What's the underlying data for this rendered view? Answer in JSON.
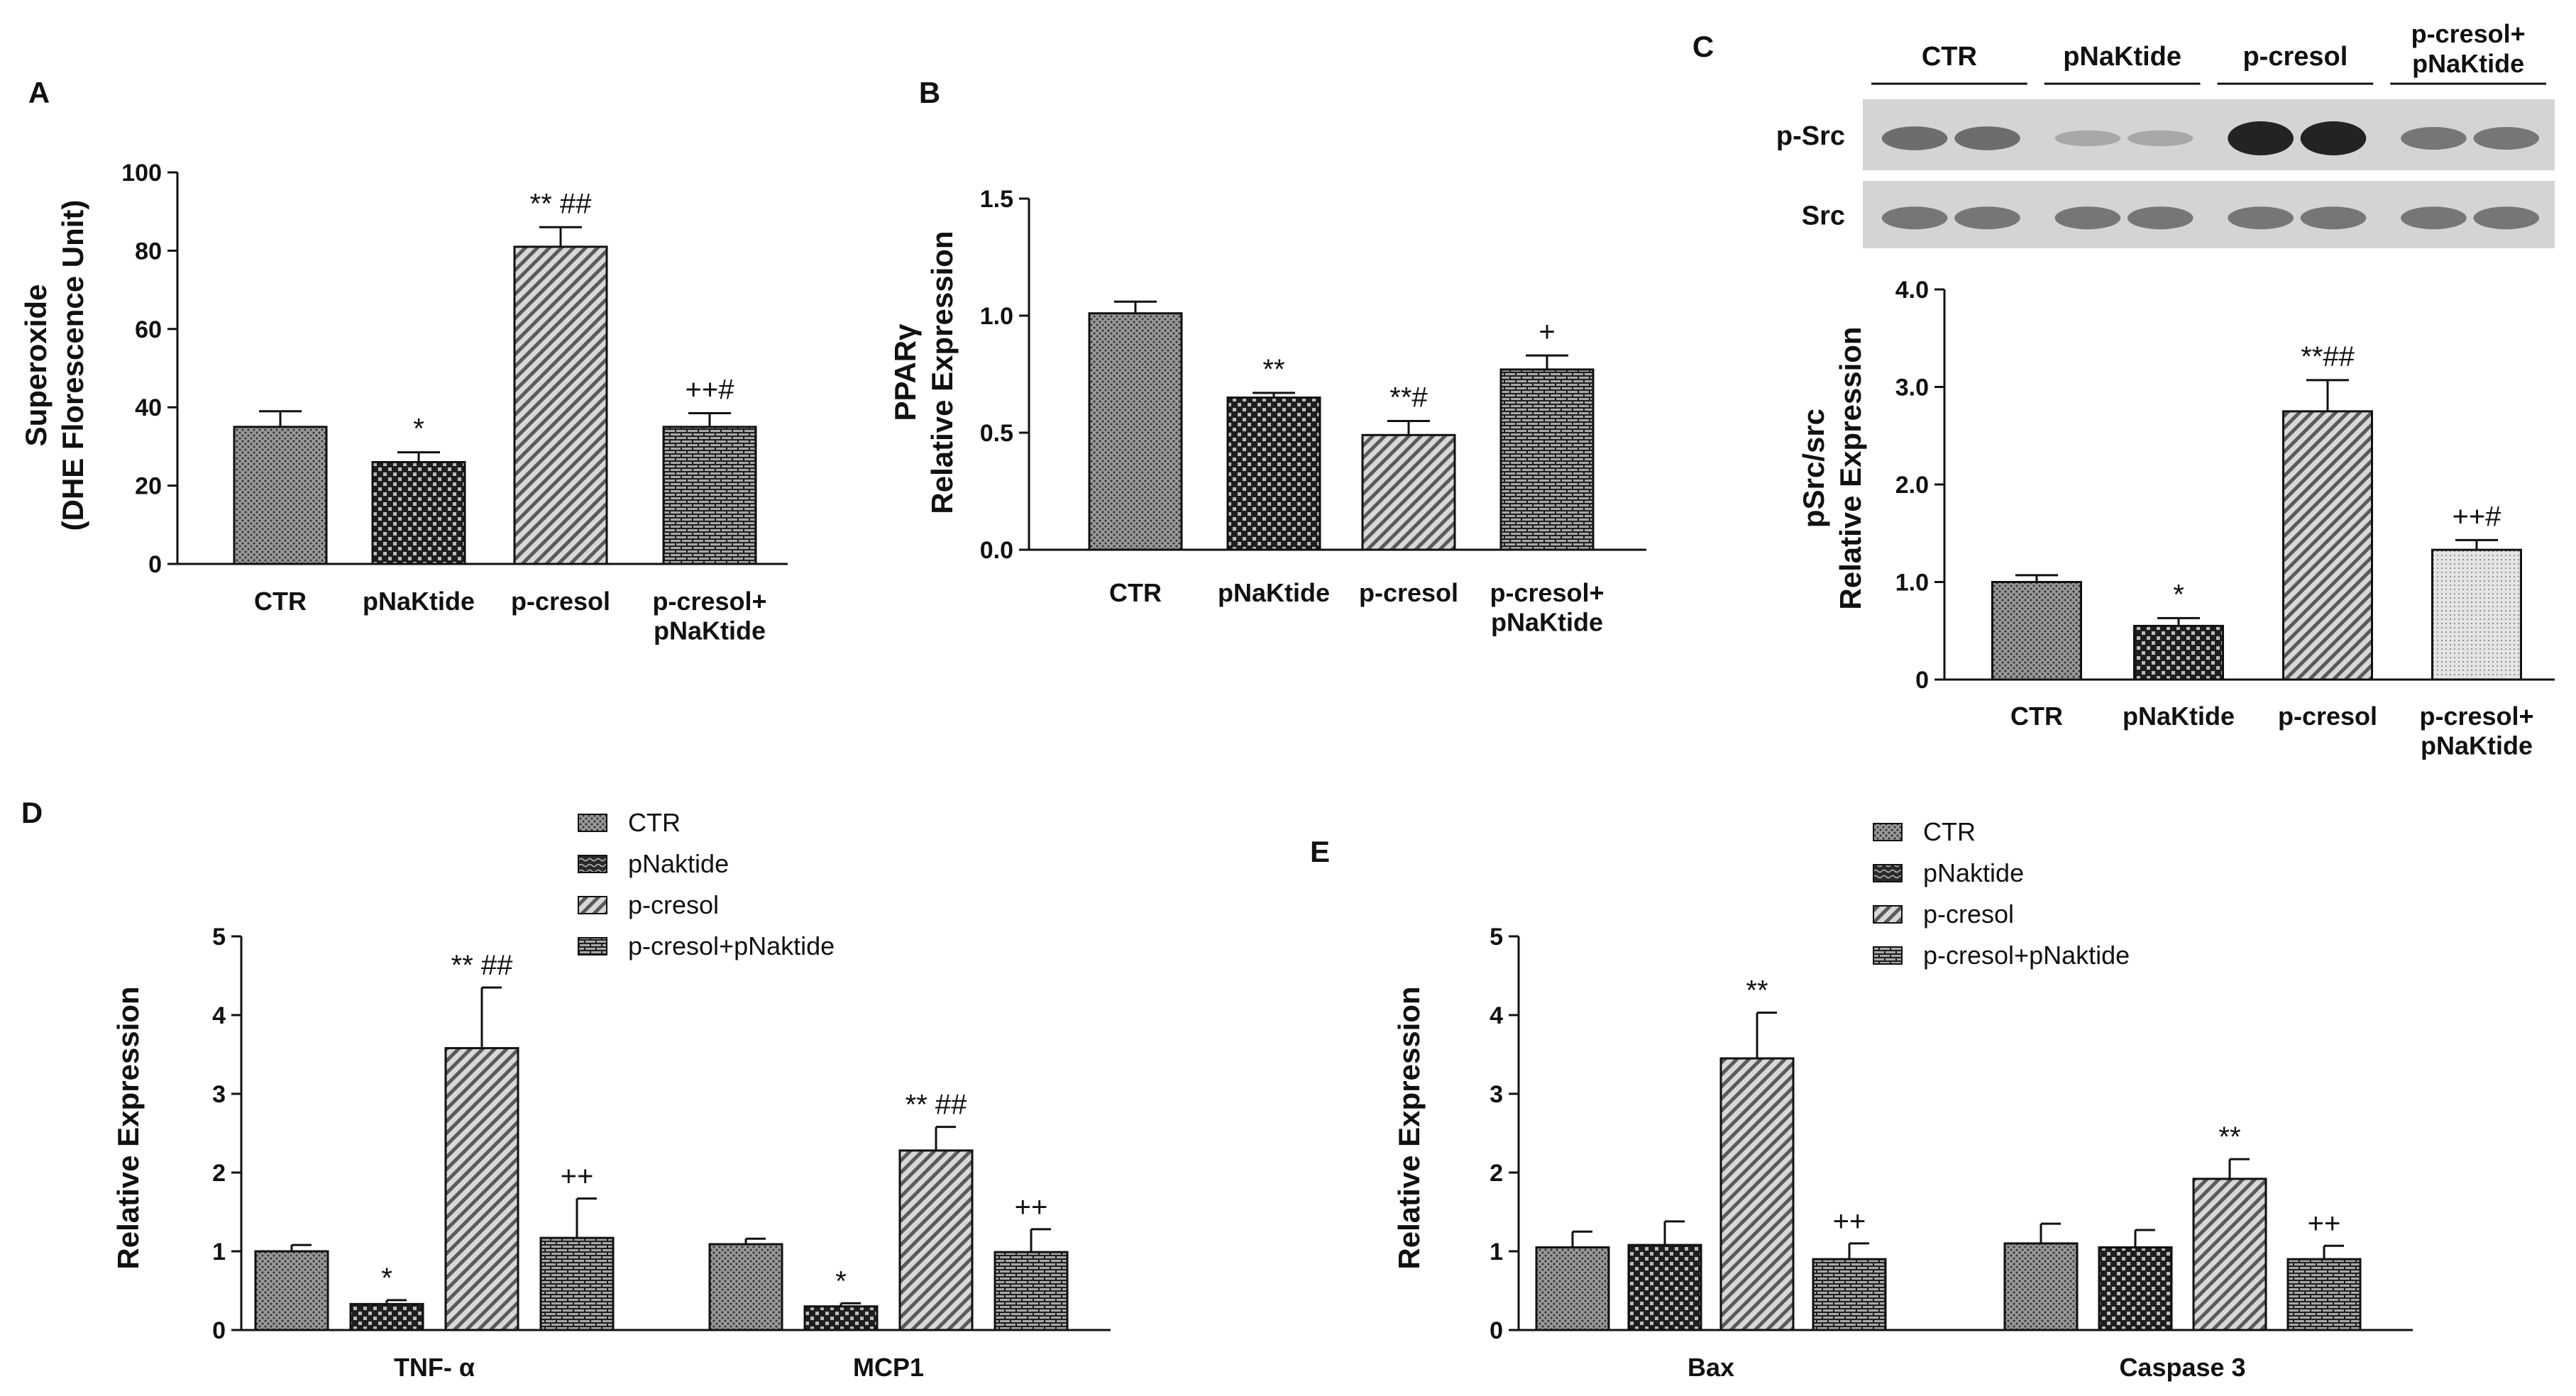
{
  "figure": {
    "panel_c_blot": {
      "lanes": [
        "CTR",
        "pNaKtide",
        "p-cresol",
        "p-cresol+\npNaKtide"
      ],
      "rows": [
        "p-Src",
        "Src"
      ],
      "band_intensity": [
        [
          0.55,
          0.55
        ],
        [
          0.2,
          0.2
        ],
        [
          1.0,
          1.0
        ],
        [
          0.5,
          0.5
        ]
      ],
      "src_intensity": [
        [
          0.5,
          0.5
        ],
        [
          0.5,
          0.5
        ],
        [
          0.5,
          0.5
        ],
        [
          0.5,
          0.5
        ]
      ]
    }
  },
  "chart_data": [
    {
      "panel": "A",
      "type": "bar",
      "categories": [
        "CTR",
        "pNaKtide",
        "p-cresol",
        "p-cresol+\npNaKtide"
      ],
      "values": [
        35,
        26,
        81,
        35
      ],
      "errors": [
        4,
        2.5,
        5,
        3.5
      ],
      "annotations": [
        "",
        "*",
        "**  ##",
        "++#"
      ],
      "ylabel": "Superoxide\n(DHE Florescence Unit)",
      "ylim": [
        0,
        100
      ],
      "yticks": [
        0,
        20,
        40,
        60,
        80,
        100
      ],
      "ytick_labels": [
        "0",
        "20",
        "40",
        "60",
        "80",
        "100"
      ]
    },
    {
      "panel": "B",
      "type": "bar",
      "categories": [
        "CTR",
        "pNaKtide",
        "p-cresol",
        "p-cresol+\npNaKtide"
      ],
      "values": [
        1.01,
        0.65,
        0.49,
        0.77
      ],
      "errors": [
        0.05,
        0.02,
        0.06,
        0.06
      ],
      "annotations": [
        "",
        "**",
        "**#",
        "+"
      ],
      "ylabel": "PPARγ\nRelative Expression",
      "ylim": [
        0,
        1.5
      ],
      "yticks": [
        0,
        0.5,
        1.0,
        1.5
      ],
      "ytick_labels": [
        "0.0",
        "0.5",
        "1.0",
        "1.5"
      ]
    },
    {
      "panel": "C",
      "type": "bar",
      "categories": [
        "CTR",
        "pNaKtide",
        "p-cresol",
        "p-cresol+\npNaKtide"
      ],
      "values": [
        1.0,
        0.55,
        2.75,
        1.33
      ],
      "errors": [
        0.07,
        0.08,
        0.32,
        0.1
      ],
      "annotations": [
        "",
        "*",
        "**##",
        "++#"
      ],
      "ylabel": "pSrc/src\nRelative Expression",
      "ylim": [
        0,
        4.0
      ],
      "yticks": [
        0,
        1,
        2,
        3,
        4
      ],
      "ytick_labels": [
        "0",
        "1.0",
        "2.0",
        "3.0",
        "4.0"
      ]
    },
    {
      "panel": "D",
      "type": "bar",
      "categories": [
        "TNF- α",
        "MCP1"
      ],
      "series": [
        {
          "name": "CTR",
          "values": [
            1.0,
            1.09
          ],
          "errors": [
            0.08,
            0.07
          ]
        },
        {
          "name": "pNaktide",
          "values": [
            0.33,
            0.3
          ],
          "errors": [
            0.05,
            0.04
          ]
        },
        {
          "name": "p-cresol",
          "values": [
            3.58,
            2.28
          ],
          "errors": [
            0.77,
            0.3
          ]
        },
        {
          "name": "p-cresol+pNaktide",
          "values": [
            1.17,
            0.99
          ],
          "errors": [
            0.5,
            0.29
          ]
        }
      ],
      "annotations": [
        [
          "",
          "*",
          "** ##",
          "++"
        ],
        [
          "",
          "*",
          "** ##",
          "++"
        ]
      ],
      "ylabel": "Relative Expression",
      "ylim": [
        0,
        5
      ],
      "yticks": [
        0,
        1,
        2,
        3,
        4,
        5
      ],
      "ytick_labels": [
        "0",
        "1",
        "2",
        "3",
        "4",
        "5"
      ],
      "legend_position": "top"
    },
    {
      "panel": "E",
      "type": "bar",
      "categories": [
        "Bax",
        "Caspase 3"
      ],
      "series": [
        {
          "name": "CTR",
          "values": [
            1.05,
            1.1
          ],
          "errors": [
            0.2,
            0.25
          ]
        },
        {
          "name": "pNaktide",
          "values": [
            1.08,
            1.05
          ],
          "errors": [
            0.3,
            0.22
          ]
        },
        {
          "name": "p-cresol",
          "values": [
            3.45,
            1.92
          ],
          "errors": [
            0.58,
            0.25
          ]
        },
        {
          "name": "p-cresol+pNaktide",
          "values": [
            0.9,
            0.9
          ],
          "errors": [
            0.2,
            0.17
          ]
        }
      ],
      "annotations": [
        [
          "",
          "",
          "**",
          "++"
        ],
        [
          "",
          "",
          "**",
          "++"
        ]
      ],
      "ylabel": "Relative Expression",
      "ylim": [
        0,
        5
      ],
      "yticks": [
        0,
        1,
        2,
        3,
        4,
        5
      ],
      "ytick_labels": [
        "0",
        "1",
        "2",
        "3",
        "4",
        "5"
      ],
      "legend_position": "top"
    }
  ],
  "panel_letters": [
    "A",
    "B",
    "C",
    "D",
    "E"
  ]
}
